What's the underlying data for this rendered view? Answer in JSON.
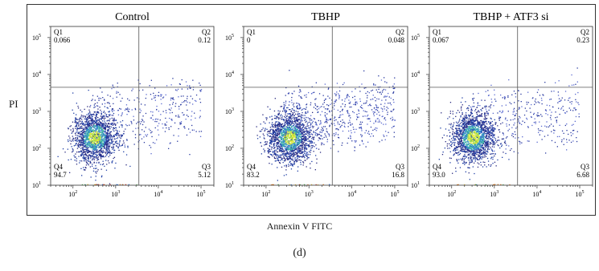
{
  "figure": {
    "ylabel": "PI",
    "xlabel": "Annexin V FITC",
    "caption": "(d)"
  },
  "chart_data": [
    {
      "type": "scatter",
      "title": "Control",
      "xlabel": "",
      "ylabel": "",
      "x_scale": "log",
      "y_scale": "log",
      "xlim": [
        30,
        200000
      ],
      "ylim": [
        10,
        200000
      ],
      "x_ticks": [
        {
          "base": "10",
          "exp": "2"
        },
        {
          "base": "10",
          "exp": "3"
        },
        {
          "base": "10",
          "exp": "4"
        },
        {
          "base": "10",
          "exp": "5"
        }
      ],
      "y_ticks": [
        {
          "base": "10",
          "exp": "1"
        },
        {
          "base": "10",
          "exp": "2"
        },
        {
          "base": "10",
          "exp": "3"
        },
        {
          "base": "10",
          "exp": "4"
        },
        {
          "base": "10",
          "exp": "5"
        }
      ],
      "gate": {
        "x": 3500,
        "y": 4500
      },
      "quadrants": [
        {
          "name": "Q1",
          "value": "0.066"
        },
        {
          "name": "Q2",
          "value": "0.12"
        },
        {
          "name": "Q3",
          "value": "5.12"
        },
        {
          "name": "Q4",
          "value": "94.7"
        }
      ]
    },
    {
      "type": "scatter",
      "title": "TBHP",
      "xlabel": "",
      "ylabel": "",
      "x_scale": "log",
      "y_scale": "log",
      "xlim": [
        30,
        200000
      ],
      "ylim": [
        10,
        200000
      ],
      "x_ticks": [
        {
          "base": "10",
          "exp": "2"
        },
        {
          "base": "10",
          "exp": "3"
        },
        {
          "base": "10",
          "exp": "4"
        },
        {
          "base": "10",
          "exp": "5"
        }
      ],
      "y_ticks": [
        {
          "base": "10",
          "exp": "1"
        },
        {
          "base": "10",
          "exp": "2"
        },
        {
          "base": "10",
          "exp": "3"
        },
        {
          "base": "10",
          "exp": "4"
        },
        {
          "base": "10",
          "exp": "5"
        }
      ],
      "gate": {
        "x": 3500,
        "y": 4500
      },
      "quadrants": [
        {
          "name": "Q1",
          "value": "0"
        },
        {
          "name": "Q2",
          "value": "0.048"
        },
        {
          "name": "Q3",
          "value": "16.8"
        },
        {
          "name": "Q4",
          "value": "83.2"
        }
      ]
    },
    {
      "type": "scatter",
      "title": "TBHP + ATF3 si",
      "xlabel": "",
      "ylabel": "",
      "x_scale": "log",
      "y_scale": "log",
      "xlim": [
        30,
        200000
      ],
      "ylim": [
        10,
        200000
      ],
      "x_ticks": [
        {
          "base": "10",
          "exp": "2"
        },
        {
          "base": "10",
          "exp": "3"
        },
        {
          "base": "10",
          "exp": "4"
        },
        {
          "base": "10",
          "exp": "5"
        }
      ],
      "y_ticks": [
        {
          "base": "10",
          "exp": "1"
        },
        {
          "base": "10",
          "exp": "2"
        },
        {
          "base": "10",
          "exp": "3"
        },
        {
          "base": "10",
          "exp": "4"
        },
        {
          "base": "10",
          "exp": "5"
        }
      ],
      "gate": {
        "x": 3500,
        "y": 4500
      },
      "quadrants": [
        {
          "name": "Q1",
          "value": "0.067"
        },
        {
          "name": "Q2",
          "value": "0.23"
        },
        {
          "name": "Q3",
          "value": "6.68"
        },
        {
          "name": "Q4",
          "value": "93.0"
        }
      ]
    }
  ]
}
